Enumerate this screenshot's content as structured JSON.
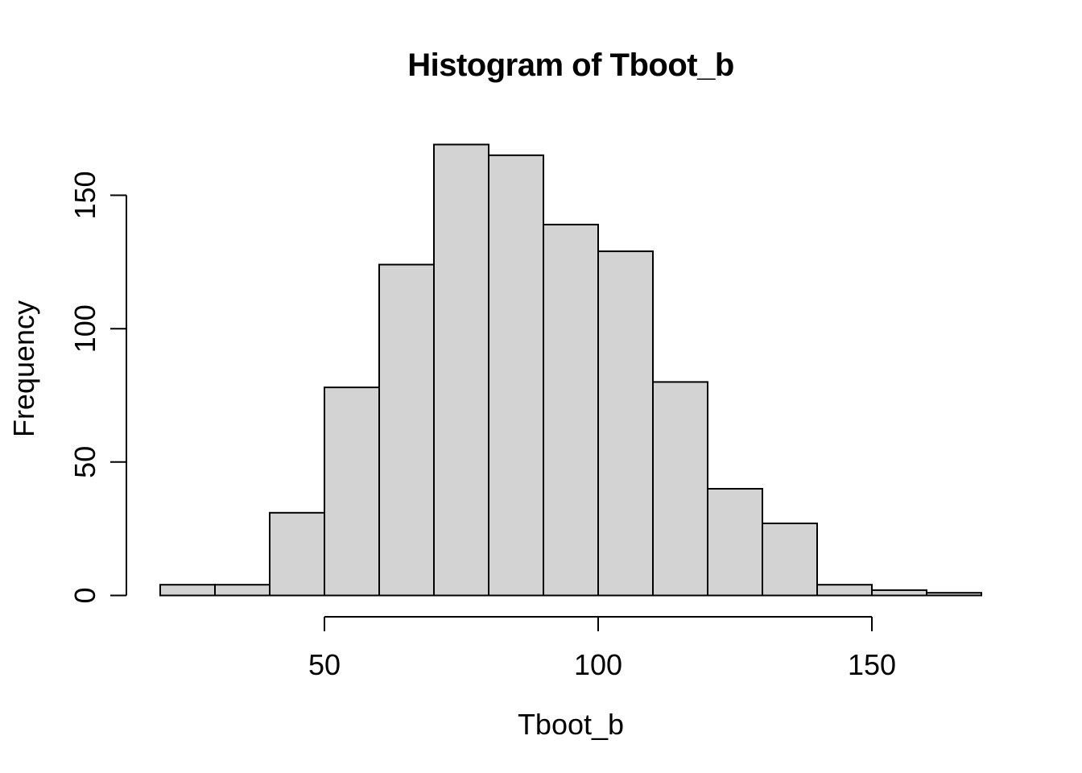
{
  "chart_data": {
    "type": "bar",
    "subtype": "histogram",
    "title": "Histogram of Tboot_b",
    "xlabel": "Tboot_b",
    "ylabel": "Frequency",
    "bin_edges": [
      20,
      30,
      40,
      50,
      60,
      70,
      80,
      90,
      100,
      110,
      120,
      130,
      140,
      150,
      160,
      170
    ],
    "counts": [
      4,
      4,
      31,
      78,
      124,
      169,
      165,
      139,
      129,
      80,
      40,
      27,
      4,
      2,
      1
    ],
    "x_ticks": [
      50,
      100,
      150
    ],
    "y_ticks": [
      0,
      50,
      100,
      150
    ],
    "xlim": [
      20,
      170
    ],
    "ylim": [
      0,
      169
    ],
    "grid": false,
    "legend": null,
    "colors": {
      "bar_fill": "#d3d3d3",
      "bar_border": "#000000",
      "axis": "#000000",
      "text": "#000000",
      "background": "#ffffff"
    }
  }
}
